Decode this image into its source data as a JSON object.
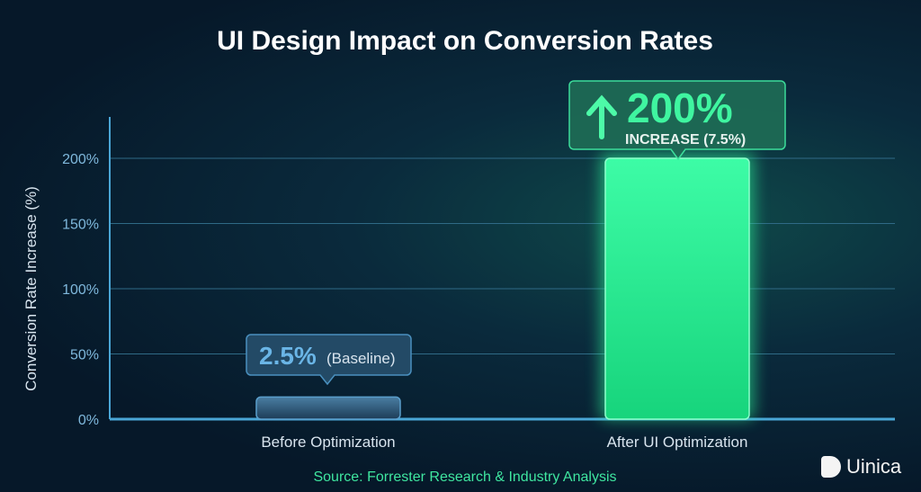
{
  "chart_data": {
    "type": "bar",
    "title": "UI Design Impact on Conversion Rates",
    "ylabel": "Conversion Rate Increase (%)",
    "xlabel": "",
    "ylim": [
      0,
      200
    ],
    "yticks": [
      0,
      50,
      100,
      150,
      200
    ],
    "ytick_labels": [
      "0%",
      "50%",
      "100%",
      "150%",
      "200%"
    ],
    "categories": [
      "Before Optimization",
      "After UI Optimization"
    ],
    "values": [
      17,
      200
    ],
    "grid": true,
    "annotations": [
      {
        "value": "2.5%",
        "text": "(Baseline)"
      },
      {
        "value": "200%",
        "text": "INCREASE (7.5%)",
        "icon": "arrow-up-icon"
      }
    ],
    "colors": {
      "before": "#3d6f93",
      "after": "#2ff59a",
      "axis": "#4aa6d6",
      "grid": "#2f6a86"
    },
    "source": "Source: Forrester Research & Industry Analysis"
  },
  "brand": {
    "name": "Uinica"
  }
}
